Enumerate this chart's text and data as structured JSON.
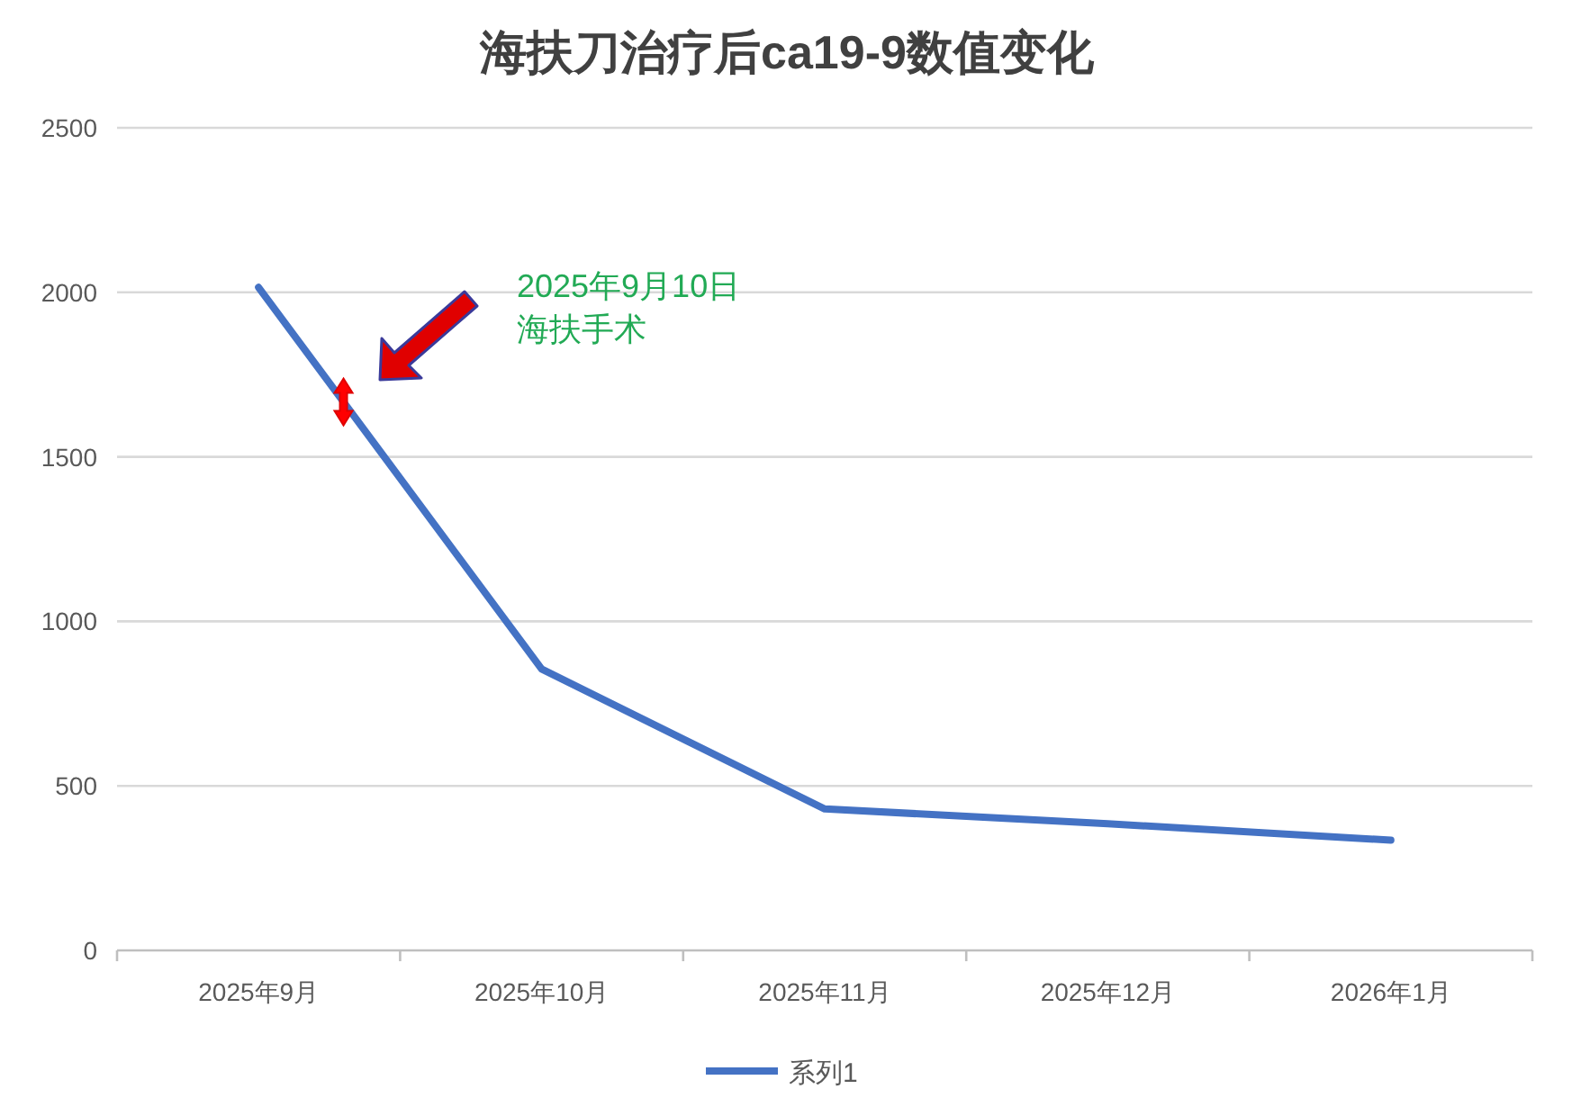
{
  "chart_data": {
    "type": "line",
    "title": "海扶刀治疗后ca19-9数值变化",
    "categories": [
      "2025年9月",
      "2025年10月",
      "2025年11月",
      "2025年12月",
      "2026年1月"
    ],
    "series": [
      {
        "name": "系列1",
        "color": "#4472c4",
        "values": [
          2015,
          855,
          430,
          385,
          335
        ]
      }
    ],
    "ylim": [
      0,
      2500
    ],
    "yticks": [
      0,
      500,
      1000,
      1500,
      2000,
      2500
    ],
    "grid": "y",
    "legend": "bottom",
    "marker": "none",
    "line_style": "solid",
    "annotations": [
      "2025年9月10日",
      "海扶手术"
    ]
  }
}
